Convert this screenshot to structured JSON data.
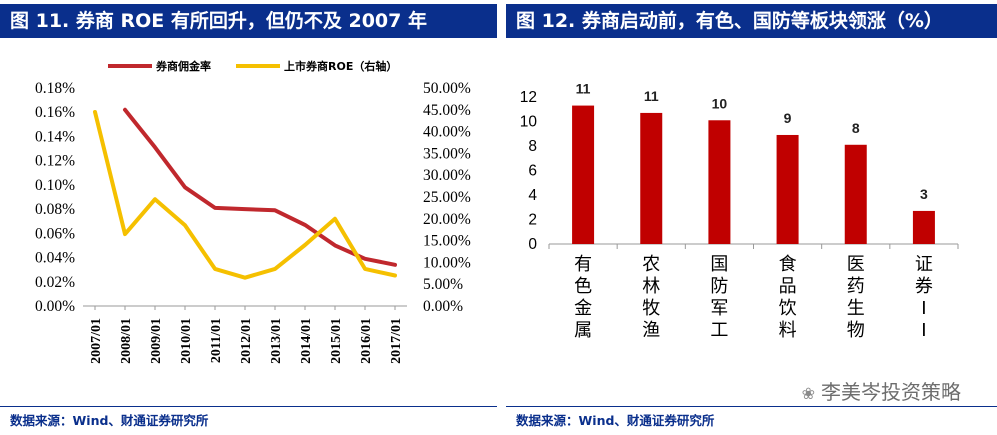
{
  "left": {
    "title": "图 11. 券商 ROE 有所回升，但仍不及 2007 年",
    "source": "数据来源：Wind、财通证券研究所",
    "chart_data": {
      "type": "line",
      "x": [
        "2007/01",
        "2008/01",
        "2009/01",
        "2010/01",
        "2011/01",
        "2012/01",
        "2013/01",
        "2014/01",
        "2015/01",
        "2016/01",
        "2017/01"
      ],
      "series": [
        {
          "name": "券商佣金率",
          "axis": "left",
          "color": "#c0282d",
          "values": [
            null,
            0.162,
            0.131,
            0.098,
            0.081,
            0.08,
            0.079,
            0.067,
            0.05,
            0.039,
            0.034
          ]
        },
        {
          "name": "上市券商ROE（右轴）",
          "axis": "right",
          "color": "#f5c000",
          "values": [
            44.5,
            16.5,
            24.5,
            18.5,
            8.5,
            6.5,
            8.5,
            14.0,
            20.0,
            8.5,
            7.0
          ]
        }
      ],
      "y_left": {
        "min": 0,
        "max": 0.18,
        "ticks": [
          "0.00%",
          "0.02%",
          "0.04%",
          "0.06%",
          "0.08%",
          "0.10%",
          "0.12%",
          "0.14%",
          "0.16%",
          "0.18%"
        ]
      },
      "y_right": {
        "min": 0,
        "max": 50,
        "ticks": [
          "0.00%",
          "5.00%",
          "10.00%",
          "15.00%",
          "20.00%",
          "25.00%",
          "30.00%",
          "35.00%",
          "40.00%",
          "45.00%",
          "50.00%"
        ]
      },
      "legend_position": "top",
      "grid": false
    }
  },
  "right": {
    "title": "图 12. 券商启动前，有色、国防等板块领涨（%）",
    "source": "数据来源：Wind、财通证券研究所",
    "watermark": "李美岑投资策略",
    "chart_data": {
      "type": "bar",
      "categories": [
        "有色金属",
        "农林牧渔",
        "国防军工",
        "食品饮料",
        "医药生物",
        "证券II"
      ],
      "values": [
        11.3,
        10.7,
        10.1,
        8.9,
        8.1,
        2.7
      ],
      "data_labels": [
        "11",
        "11",
        "10",
        "9",
        "8",
        "3"
      ],
      "color": "#c00000",
      "ylim": [
        0,
        12
      ],
      "y_ticks": [
        "0",
        "2",
        "4",
        "6",
        "8",
        "10",
        "12"
      ],
      "grid": false
    }
  }
}
